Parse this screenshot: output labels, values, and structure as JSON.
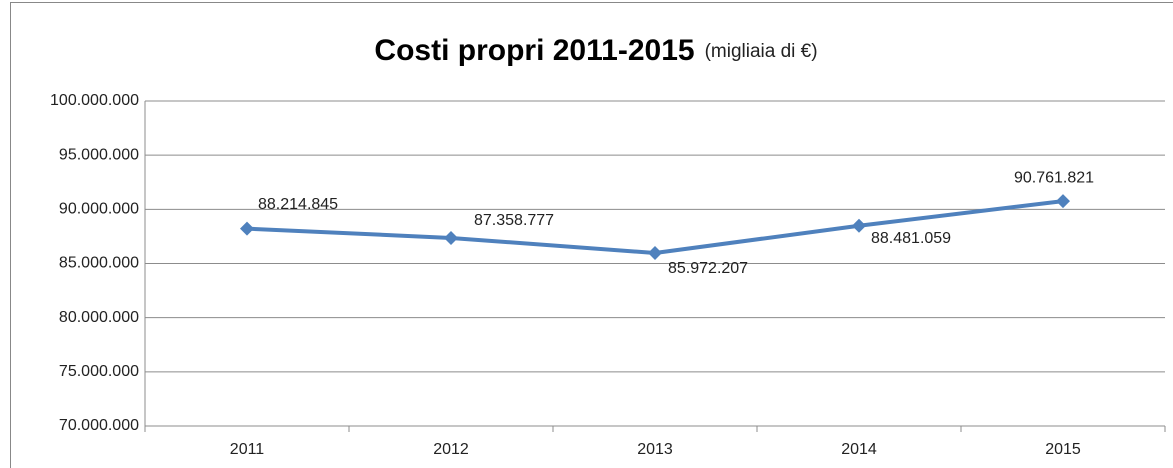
{
  "chart_data": {
    "type": "line",
    "title": "Costi propri 2011-2015",
    "subtitle": "(migliaia di €)",
    "categories": [
      "2011",
      "2012",
      "2013",
      "2014",
      "2015"
    ],
    "series": [
      {
        "name": "Costi propri",
        "color": "#4f81bd",
        "values": [
          88214845,
          87358777,
          85972207,
          88481059,
          90761821
        ],
        "value_labels": [
          "88.214.845",
          "87.358.777",
          "85.972.207",
          "88.481.059",
          "90.761.821"
        ]
      }
    ],
    "ylim": [
      70000000,
      100000000
    ],
    "yticks": [
      {
        "value": 70000000,
        "label": "70.000.000"
      },
      {
        "value": 75000000,
        "label": "75.000.000"
      },
      {
        "value": 80000000,
        "label": "80.000.000"
      },
      {
        "value": 85000000,
        "label": "85.000.000"
      },
      {
        "value": 90000000,
        "label": "90.000.000"
      },
      {
        "value": 95000000,
        "label": "95.000.000"
      },
      {
        "value": 100000000,
        "label": "100.000.000"
      }
    ],
    "grid": true
  }
}
